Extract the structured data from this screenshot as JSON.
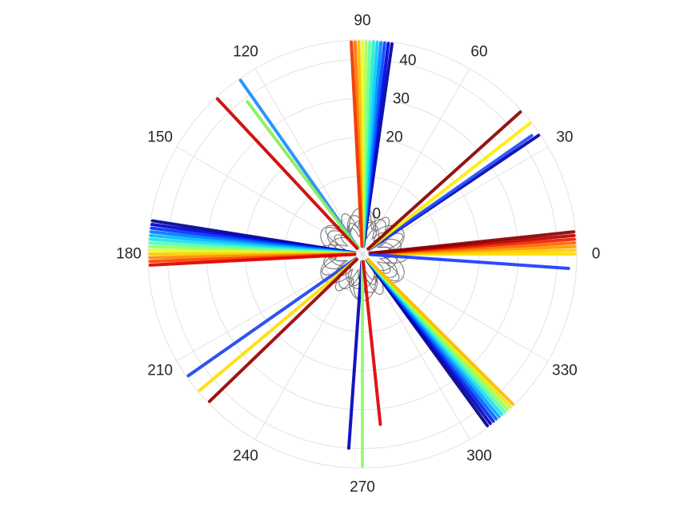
{
  "chart_data": {
    "type": "polar-scatter",
    "title": "",
    "theta_unit": "degrees",
    "theta_ticks": [
      "0",
      "30",
      "60",
      "90",
      "120",
      "150",
      "180",
      "210",
      "240",
      "270",
      "300",
      "330"
    ],
    "r_ticks": [
      "0",
      "20",
      "30",
      "40"
    ],
    "r_axis_angle_deg": 80,
    "rlim": [
      -10,
      45
    ],
    "grid": true,
    "colormap": "jet",
    "inner_curve_color": "#707070",
    "inner_curve_r_max": 2,
    "series": [
      {
        "theta": 0,
        "r_min": -8,
        "r_max": 44.5,
        "color": "#ffe000"
      },
      {
        "theta": 1,
        "r_min": -8,
        "r_max": 44.5,
        "color": "#ffcc00"
      },
      {
        "theta": 2,
        "r_min": -8,
        "r_max": 44.5,
        "color": "#ff9900"
      },
      {
        "theta": 3,
        "r_min": -8,
        "r_max": 44.5,
        "color": "#ff6600"
      },
      {
        "theta": 4,
        "r_min": -8,
        "r_max": 44.5,
        "color": "#ee2200"
      },
      {
        "theta": 5,
        "r_min": -8,
        "r_max": 44.5,
        "color": "#bb0000"
      },
      {
        "theta": 6,
        "r_min": -8,
        "r_max": 44.5,
        "color": "#880000"
      },
      {
        "theta": -4,
        "r_min": -8,
        "r_max": 43,
        "color": "#1a3cff"
      },
      {
        "theta": 34,
        "r_min": -8,
        "r_max": 44.5,
        "color": "#0000aa"
      },
      {
        "theta": 35,
        "r_min": -8,
        "r_max": 43,
        "color": "#1f4cff"
      },
      {
        "theta": 38,
        "r_min": -8,
        "r_max": 44.5,
        "color": "#ffee00"
      },
      {
        "theta": 42,
        "r_min": -8,
        "r_max": 44.5,
        "color": "#8b0000"
      },
      {
        "theta": 82,
        "r_min": -8,
        "r_max": 44.5,
        "color": "#0000a0"
      },
      {
        "theta": 83,
        "r_min": -8,
        "r_max": 44.5,
        "color": "#0000dd"
      },
      {
        "theta": 84,
        "r_min": -8,
        "r_max": 44.5,
        "color": "#0044ff"
      },
      {
        "theta": 85,
        "r_min": -8,
        "r_max": 44.5,
        "color": "#0088ff"
      },
      {
        "theta": 86,
        "r_min": -8,
        "r_max": 44.5,
        "color": "#00ccff"
      },
      {
        "theta": 87,
        "r_min": -8,
        "r_max": 44.5,
        "color": "#22eecc"
      },
      {
        "theta": 88,
        "r_min": -8,
        "r_max": 44.5,
        "color": "#66ff99"
      },
      {
        "theta": 89,
        "r_min": -8,
        "r_max": 44.5,
        "color": "#aaff55"
      },
      {
        "theta": 90,
        "r_min": -8,
        "r_max": 44.5,
        "color": "#eeff11"
      },
      {
        "theta": 91,
        "r_min": -8,
        "r_max": 44.5,
        "color": "#ffbb00"
      },
      {
        "theta": 92,
        "r_min": -8,
        "r_max": 44.5,
        "color": "#ff7700"
      },
      {
        "theta": 93,
        "r_min": -8,
        "r_max": 44.5,
        "color": "#ee3300"
      },
      {
        "theta": 125,
        "r_min": -8,
        "r_max": 44.5,
        "color": "#1a8cff"
      },
      {
        "theta": 127,
        "r_min": -8,
        "r_max": 39,
        "color": "#88ee55"
      },
      {
        "theta": 133,
        "r_min": -8,
        "r_max": 44.5,
        "color": "#cc0000"
      },
      {
        "theta": 171,
        "r_min": -8,
        "r_max": 44.5,
        "color": "#000090"
      },
      {
        "theta": 172,
        "r_min": -8,
        "r_max": 44.5,
        "color": "#0000cc"
      },
      {
        "theta": 173,
        "r_min": -8,
        "r_max": 44.5,
        "color": "#0033ff"
      },
      {
        "theta": 174,
        "r_min": -8,
        "r_max": 44.5,
        "color": "#0077ff"
      },
      {
        "theta": 175,
        "r_min": -8,
        "r_max": 44.5,
        "color": "#00bbff"
      },
      {
        "theta": 176,
        "r_min": -8,
        "r_max": 44.5,
        "color": "#22ddee"
      },
      {
        "theta": 177,
        "r_min": -8,
        "r_max": 44.5,
        "color": "#55ffaa"
      },
      {
        "theta": 178,
        "r_min": -8,
        "r_max": 44.5,
        "color": "#99ff66"
      },
      {
        "theta": 179,
        "r_min": -8,
        "r_max": 44.5,
        "color": "#ddff22"
      },
      {
        "theta": 180,
        "r_min": -8,
        "r_max": 44.5,
        "color": "#ffcc00"
      },
      {
        "theta": 181,
        "r_min": -8,
        "r_max": 44.5,
        "color": "#ff8800"
      },
      {
        "theta": 182,
        "r_min": -8,
        "r_max": 44.5,
        "color": "#ff4400"
      },
      {
        "theta": 183,
        "r_min": -8,
        "r_max": 44.5,
        "color": "#dd0000"
      },
      {
        "theta": 215,
        "r_min": -8,
        "r_max": 44.5,
        "color": "#1a44ee"
      },
      {
        "theta": 220,
        "r_min": -8,
        "r_max": 44.5,
        "color": "#ffdd00"
      },
      {
        "theta": 224,
        "r_min": -8,
        "r_max": 44.5,
        "color": "#990000"
      },
      {
        "theta": 266,
        "r_min": -8,
        "r_max": 40,
        "color": "#0000bb"
      },
      {
        "theta": 270,
        "r_min": -8,
        "r_max": 44.5,
        "color": "#88ff66"
      },
      {
        "theta": 276,
        "r_min": -8,
        "r_max": 34,
        "color": "#dd0000"
      },
      {
        "theta": 306,
        "r_min": -8,
        "r_max": 44.5,
        "color": "#000088"
      },
      {
        "theta": 307,
        "r_min": -8,
        "r_max": 44.5,
        "color": "#0000bb"
      },
      {
        "theta": 308,
        "r_min": -8,
        "r_max": 44.5,
        "color": "#0022ee"
      },
      {
        "theta": 309,
        "r_min": -8,
        "r_max": 44.5,
        "color": "#0066ff"
      },
      {
        "theta": 310,
        "r_min": -8,
        "r_max": 44.5,
        "color": "#00aaff"
      },
      {
        "theta": 311,
        "r_min": -8,
        "r_max": 44.5,
        "color": "#22ddee"
      },
      {
        "theta": 312,
        "r_min": -8,
        "r_max": 44.5,
        "color": "#55ffaa"
      },
      {
        "theta": 313,
        "r_min": -8,
        "r_max": 44.5,
        "color": "#99ff55"
      },
      {
        "theta": 314,
        "r_min": -8,
        "r_max": 44.5,
        "color": "#ddee11"
      },
      {
        "theta": 315,
        "r_min": -8,
        "r_max": 44.5,
        "color": "#ffbb00"
      }
    ]
  }
}
